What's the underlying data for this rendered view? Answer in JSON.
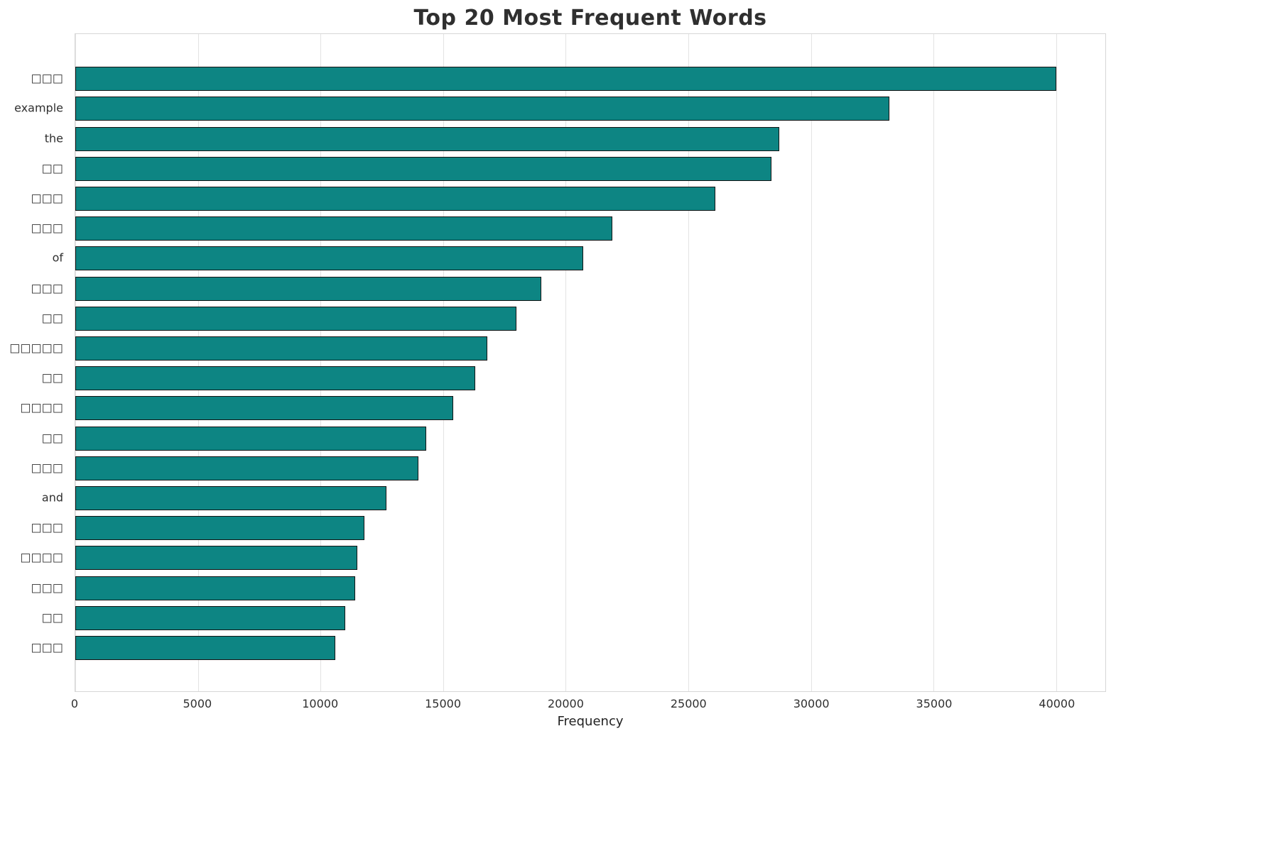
{
  "chart_data": {
    "type": "bar",
    "orientation": "horizontal",
    "title": "Top 20 Most Frequent Words",
    "xlabel": "Frequency",
    "ylabel": "",
    "categories": [
      "□□□",
      "example",
      "the",
      "□□",
      "□□□",
      "□□□",
      "of",
      "□□□",
      "□□",
      "□□□□□",
      "□□",
      "□□□□",
      "□□",
      "□□□",
      "and",
      "□□□",
      "□□□□",
      "□□□",
      "□□",
      "□□□"
    ],
    "values": [
      40000,
      33200,
      28700,
      28400,
      26100,
      21900,
      20700,
      19000,
      18000,
      16800,
      16300,
      15400,
      14300,
      14000,
      12700,
      11800,
      11500,
      11400,
      11000,
      10600
    ],
    "xlim": [
      0,
      42000
    ],
    "xticks": [
      0,
      5000,
      10000,
      15000,
      20000,
      25000,
      30000,
      35000,
      40000
    ],
    "grid": "vertical",
    "legend": "none",
    "bar_color": "#0d8583",
    "bar_edge_color": "#141414"
  }
}
